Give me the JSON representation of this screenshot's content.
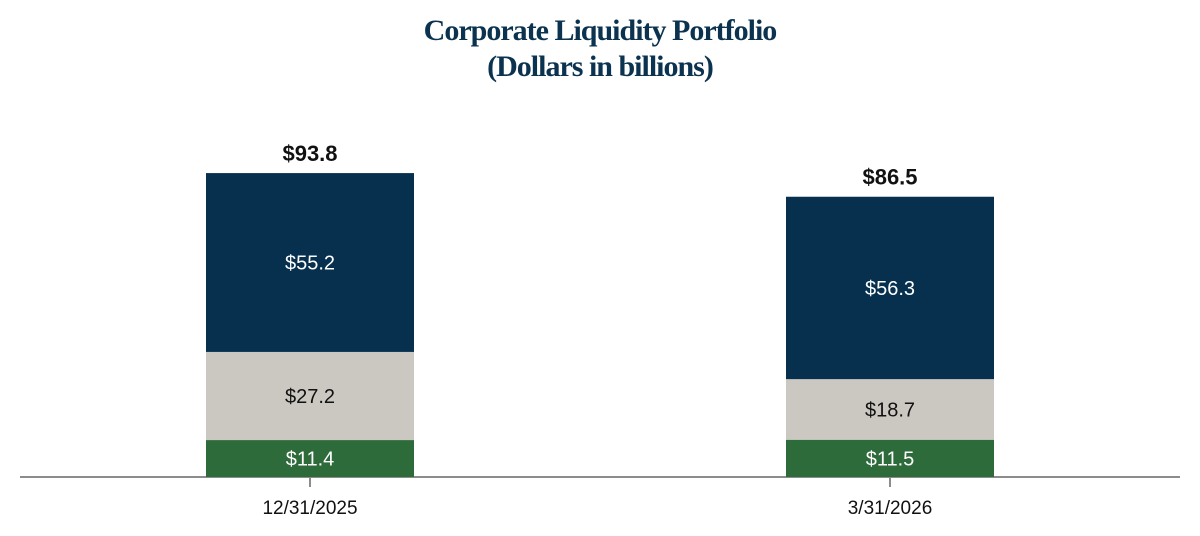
{
  "chart_data": {
    "type": "bar",
    "stacked": true,
    "title": "Corporate Liquidity Portfolio",
    "subtitle": "(Dollars in billions)",
    "categories": [
      "12/31/2025",
      "3/31/2026"
    ],
    "series": [
      {
        "values": [
          11.4,
          11.5
        ],
        "labels": [
          "$11.4",
          "$11.5"
        ],
        "color": "#2e6b3a",
        "label_color": "#ffffff"
      },
      {
        "values": [
          27.2,
          18.7
        ],
        "labels": [
          "$27.2",
          "$18.7"
        ],
        "color": "#cbc8c2",
        "label_color": "#111111"
      },
      {
        "values": [
          55.2,
          56.3
        ],
        "labels": [
          "$55.2",
          "$56.3"
        ],
        "color": "#06304d",
        "label_color": "#ffffff"
      }
    ],
    "totals": [
      93.8,
      86.5
    ],
    "total_labels": [
      "$93.8",
      "$86.5"
    ],
    "axis_color": "#8c8c8c",
    "grid": false,
    "legend": "none"
  }
}
